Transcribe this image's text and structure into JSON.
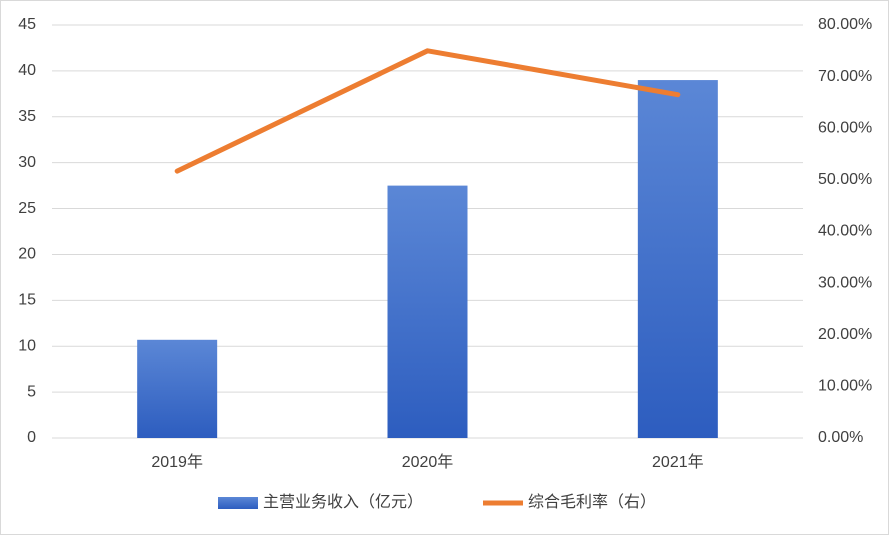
{
  "chart_data": {
    "type": "bar",
    "categories": [
      "2019年",
      "2020年",
      "2021年"
    ],
    "series": [
      {
        "name": "主营业务收入（亿元）",
        "type": "bar",
        "color": "#3f6fcc",
        "values": [
          10.7,
          27.5,
          39.0
        ]
      },
      {
        "name": "综合毛利率（右）",
        "type": "line",
        "axis": "y2",
        "color": "#ed7d31",
        "values": [
          51.7,
          75.0,
          66.5
        ]
      }
    ],
    "ylim": [
      0,
      45
    ],
    "yticks": [
      0,
      5,
      10,
      15,
      20,
      25,
      30,
      35,
      40,
      45
    ],
    "y2lim": [
      0,
      80
    ],
    "y2ticks": [
      {
        "value": 0,
        "label": "0.00%"
      },
      {
        "value": 10,
        "label": "10.00%"
      },
      {
        "value": 20,
        "label": "20.00%"
      },
      {
        "value": 30,
        "label": "30.00%"
      },
      {
        "value": 40,
        "label": "40.00%"
      },
      {
        "value": 50,
        "label": "50.00%"
      },
      {
        "value": 60,
        "label": "60.00%"
      },
      {
        "value": 70,
        "label": "70.00%"
      },
      {
        "value": 80,
        "label": "80.00%"
      }
    ],
    "grid": true,
    "legend": "bottom"
  }
}
